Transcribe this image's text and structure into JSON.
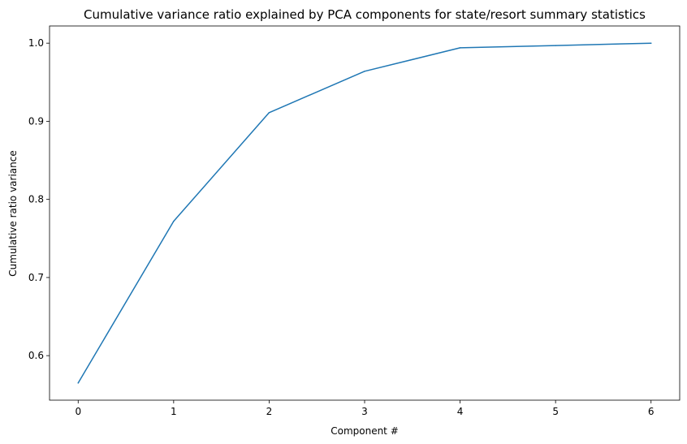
{
  "chart_data": {
    "type": "line",
    "title": "Cumulative variance ratio explained by PCA components for state/resort summary statistics",
    "xlabel": "Component #",
    "ylabel": "Cumulative ratio variance",
    "x": [
      0,
      1,
      2,
      3,
      4,
      5,
      6
    ],
    "series": [
      {
        "values": [
          0.565,
          0.772,
          0.911,
          0.964,
          0.994,
          0.997,
          1.0
        ],
        "color": "#1f77b4"
      }
    ],
    "xlim": [
      -0.3,
      6.3
    ],
    "ylim": [
      0.543,
      1.022
    ],
    "xticks": [
      0,
      1,
      2,
      3,
      4,
      5,
      6
    ],
    "xtick_labels": [
      "0",
      "1",
      "2",
      "3",
      "4",
      "5",
      "6"
    ],
    "yticks": [
      0.6,
      0.7,
      0.8,
      0.9,
      1.0
    ],
    "ytick_labels": [
      "0.6",
      "0.7",
      "0.8",
      "0.9",
      "1.0"
    ],
    "grid": false,
    "legend": "none"
  }
}
